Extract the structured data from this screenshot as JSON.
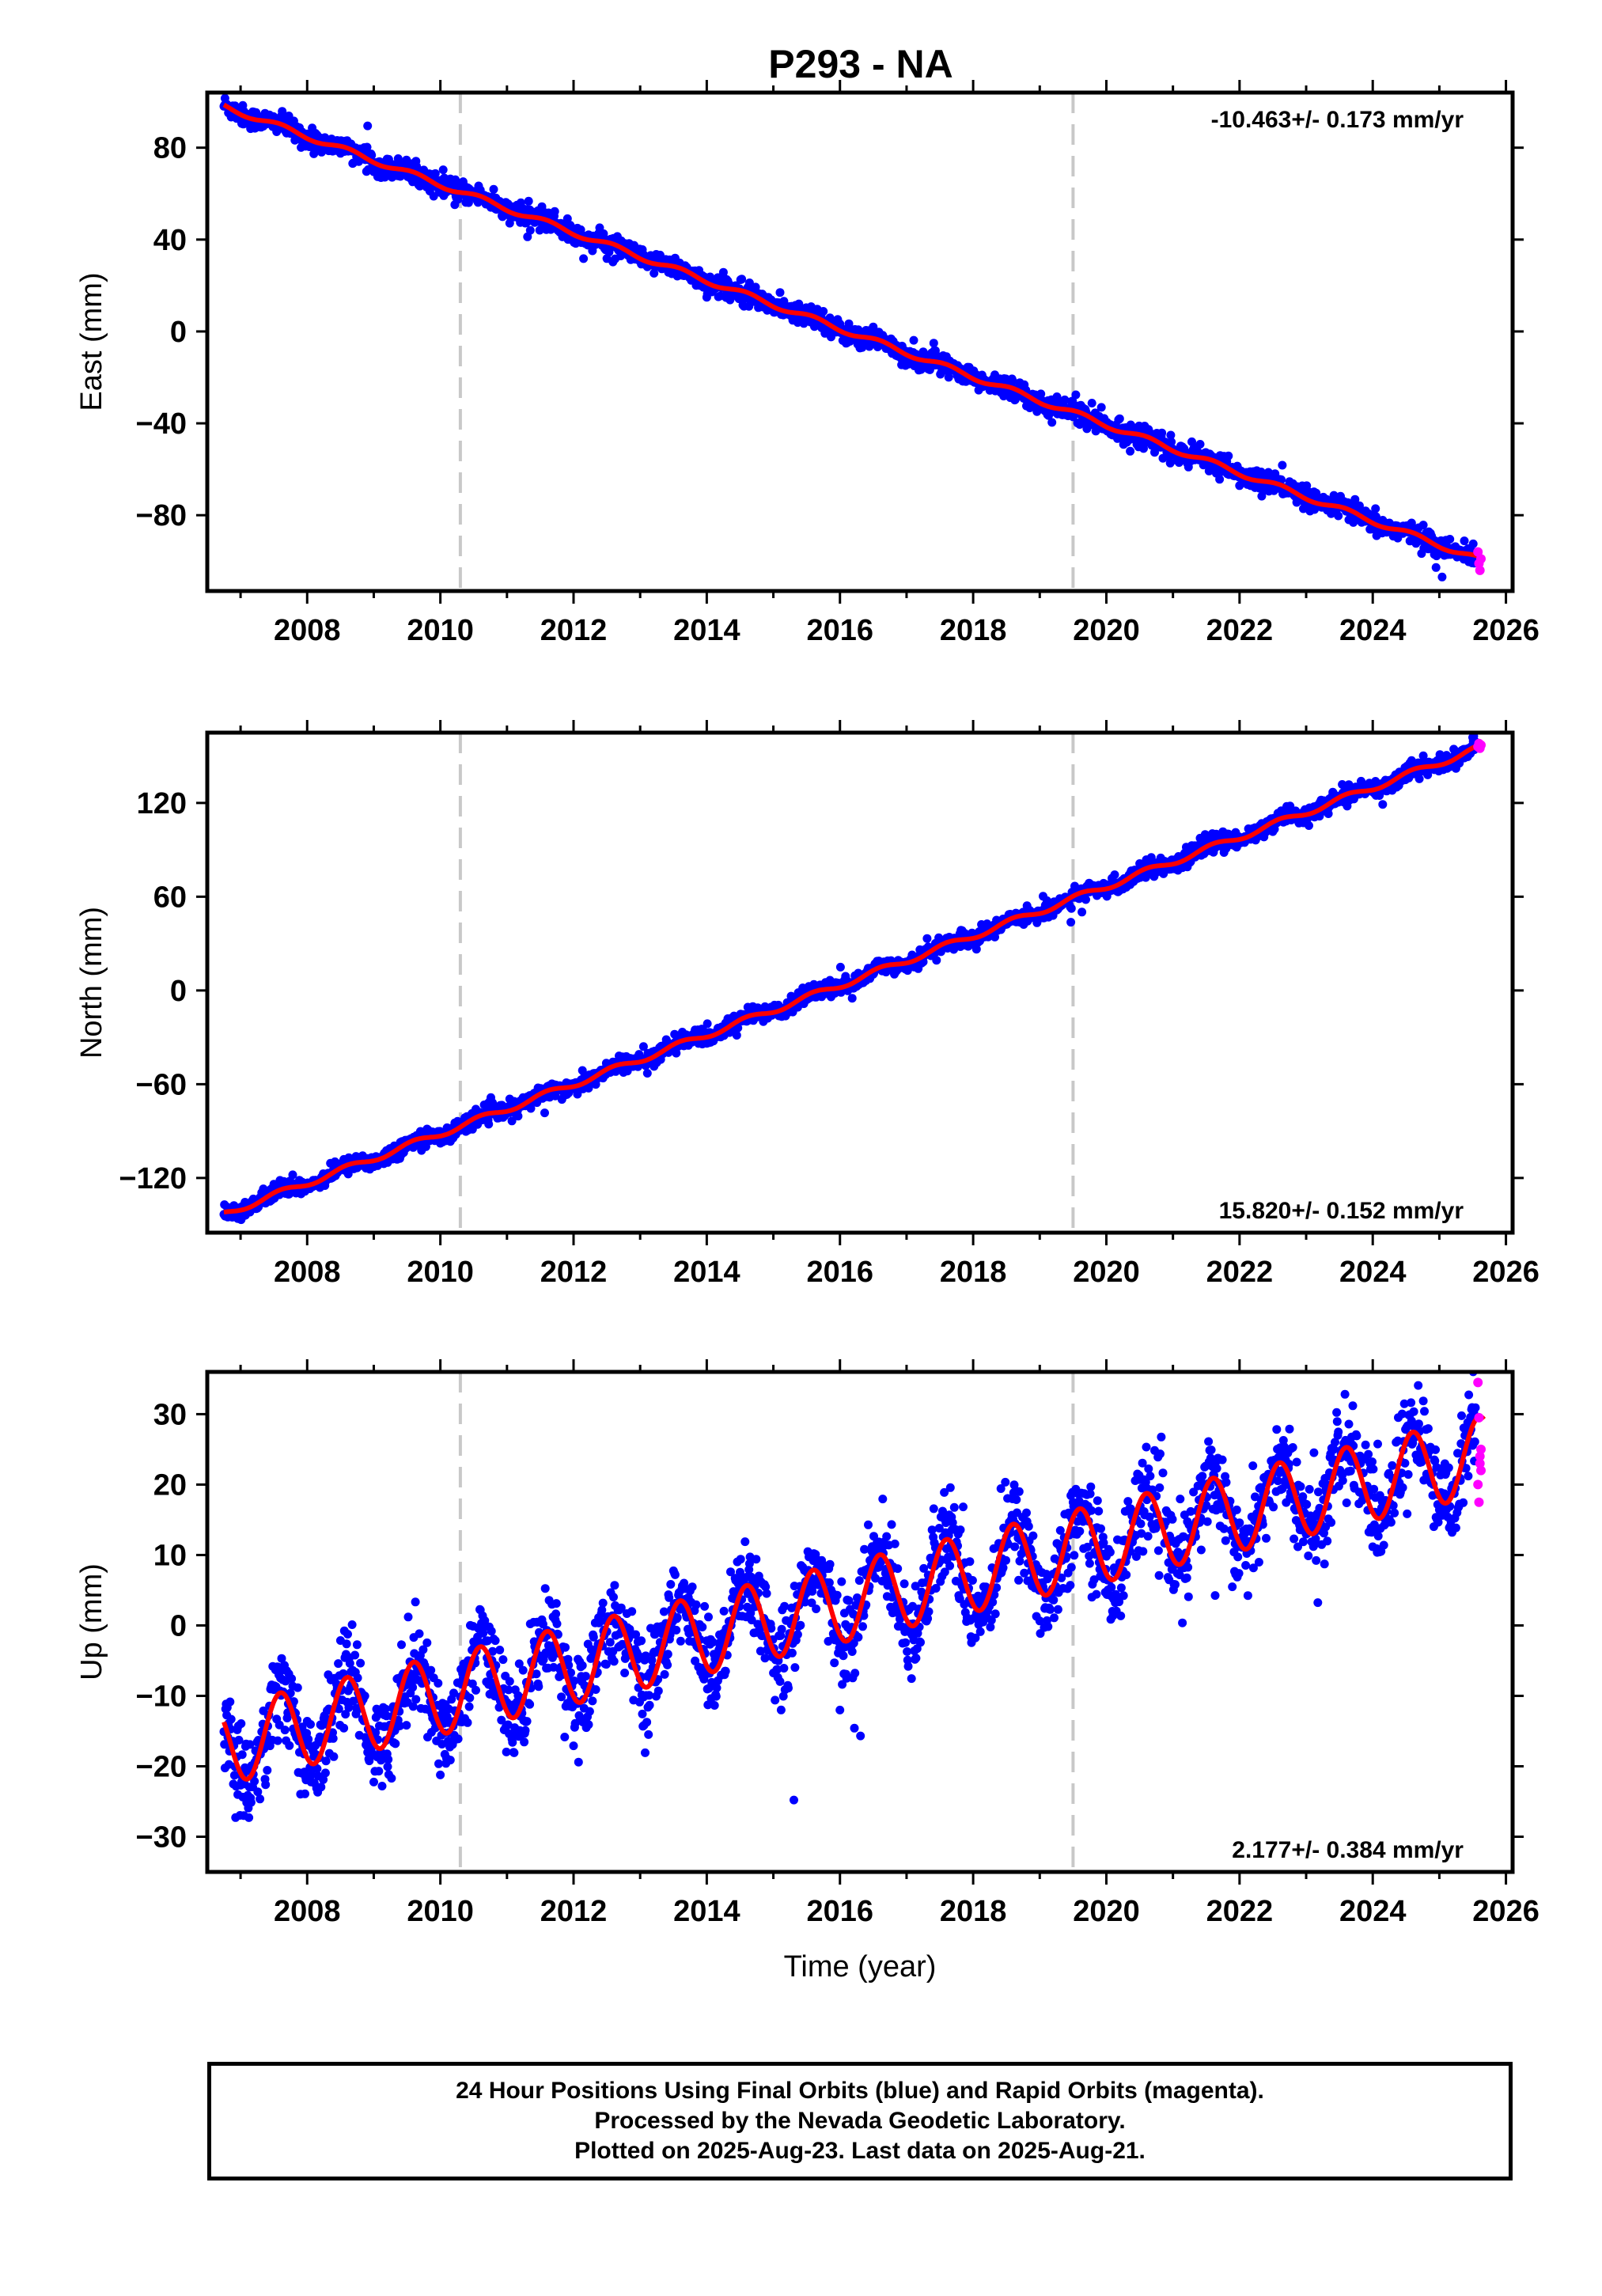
{
  "title": "P293 - NA",
  "chart_data": [
    {
      "type": "scatter",
      "panel": "east",
      "ylabel": "East (mm)",
      "xlabel": "",
      "xlim": [
        2006.5,
        2026.1
      ],
      "ylim": [
        -113,
        104
      ],
      "xticks": [
        2008,
        2010,
        2012,
        2014,
        2016,
        2018,
        2020,
        2022,
        2024,
        2026
      ],
      "yticks": [
        80,
        40,
        0,
        -40,
        -80
      ],
      "rate_text": "-10.463+/- 0.173 mm/yr",
      "rate_position": "top-right",
      "trend": {
        "t0": 2006.75,
        "y0": 98.0,
        "slope": -10.463,
        "seasonal_amp": 1.2
      },
      "scatter": 2.2,
      "rapid": {
        "from": 2025.55,
        "values": [
          -96,
          -101,
          -104,
          -99
        ]
      },
      "grid": false,
      "vlines": [
        2010.3,
        2019.5
      ]
    },
    {
      "type": "scatter",
      "panel": "north",
      "ylabel": "North (mm)",
      "xlabel": "",
      "xlim": [
        2006.5,
        2026.1
      ],
      "ylim": [
        -155,
        165
      ],
      "xticks": [
        2008,
        2010,
        2012,
        2014,
        2016,
        2018,
        2020,
        2022,
        2024,
        2026
      ],
      "yticks": [
        120,
        60,
        0,
        -60,
        -120
      ],
      "rate_text": "15.820+/- 0.152 mm/yr",
      "rate_position": "bottom-right",
      "trend": {
        "t0": 2006.75,
        "y0": -143.0,
        "slope": 15.82,
        "seasonal_amp": 2.0
      },
      "scatter": 2.6,
      "rapid": {
        "from": 2025.55,
        "values": [
          156,
          158,
          155,
          157
        ]
      },
      "grid": false,
      "vlines": [
        2010.3,
        2019.5
      ]
    },
    {
      "type": "scatter",
      "panel": "up",
      "ylabel": "Up (mm)",
      "xlabel": "Time (year)",
      "xlim": [
        2006.5,
        2026.1
      ],
      "ylim": [
        -35,
        36
      ],
      "xticks": [
        2008,
        2010,
        2012,
        2014,
        2016,
        2018,
        2020,
        2022,
        2024,
        2026
      ],
      "yticks": [
        30,
        20,
        10,
        0,
        -10,
        -20,
        -30
      ],
      "rate_text": "2.177+/- 0.384 mm/yr",
      "rate_position": "bottom-right",
      "trend": {
        "t0": 2006.75,
        "y0": -17.0,
        "slope": 2.177,
        "seasonal_amp": 5.6
      },
      "scatter": 3.2,
      "rapid": {
        "from": 2025.55,
        "values": [
          34.5,
          29.5,
          24,
          22,
          20,
          17.5,
          23,
          25
        ]
      },
      "grid": false,
      "vlines": [
        2010.3,
        2019.5
      ]
    }
  ],
  "colors": {
    "final_orbits": "#0000ff",
    "rapid_orbits": "#ff00ff",
    "model": "#ff0000",
    "vline": "#c8c8c8",
    "frame": "#000000"
  },
  "footer": {
    "line1": "24 Hour Positions Using Final Orbits (blue) and Rapid Orbits (magenta).",
    "line2": "Processed by the Nevada Geodetic Laboratory.",
    "line3": "Plotted on 2025-Aug-23. Last data on 2025-Aug-21."
  }
}
